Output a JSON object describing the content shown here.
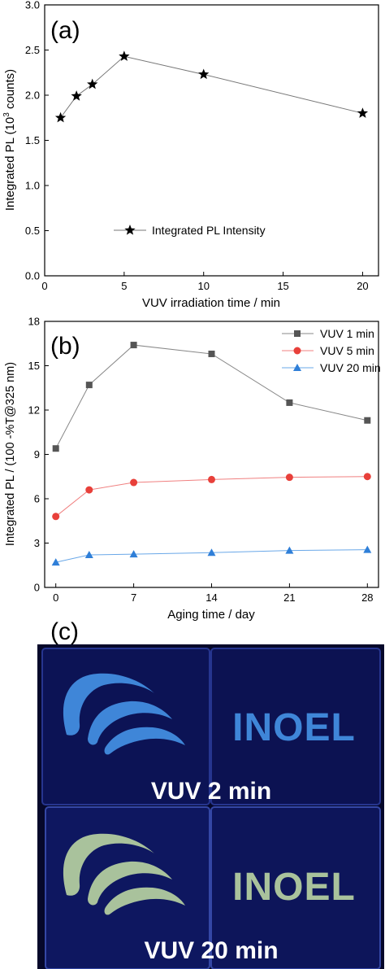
{
  "panel_labels": {
    "a": "(a)",
    "b": "(b)",
    "c": "(c)"
  },
  "chart_data": [
    {
      "id": "a",
      "type": "line",
      "xlabel": "VUV irradiation time / min",
      "ylabel": "Integrated PL (10",
      "ylabel_sup": "3",
      "ylabel_tail": " counts)",
      "xlim": [
        0,
        21
      ],
      "ylim": [
        0,
        3
      ],
      "xticks": [
        0,
        5,
        10,
        15,
        20
      ],
      "yticks": [
        "0.0",
        "0.5",
        "1.0",
        "1.5",
        "2.0",
        "2.5",
        "3.0"
      ],
      "grid": false,
      "legend": "bottom-center",
      "series": [
        {
          "name": "Integrated PL Intensity",
          "marker": "star",
          "color": "#000000",
          "line_color": "#777777",
          "x": [
            1,
            2,
            3,
            5,
            10,
            20
          ],
          "y": [
            1.75,
            1.99,
            2.12,
            2.43,
            2.23,
            1.8
          ]
        }
      ]
    },
    {
      "id": "b",
      "type": "line",
      "xlabel": "Aging time / day",
      "ylabel": "Integrated PL / (100 -%T@325 nm)",
      "xlim": [
        -1,
        29
      ],
      "ylim": [
        0,
        18
      ],
      "xticks": [
        0,
        7,
        14,
        21,
        28
      ],
      "yticks": [
        0,
        3,
        6,
        9,
        12,
        15,
        18
      ],
      "grid": false,
      "legend": "top-right",
      "series": [
        {
          "name": "VUV 1 min",
          "marker": "square",
          "color": "#555555",
          "line_color": "#888888",
          "x": [
            0,
            3,
            7,
            14,
            21,
            28
          ],
          "y": [
            9.4,
            13.7,
            16.4,
            15.8,
            12.5,
            11.3
          ]
        },
        {
          "name": "VUV 5 min",
          "marker": "circle",
          "color": "#e8403a",
          "line_color": "#f08080",
          "x": [
            0,
            3,
            7,
            14,
            21,
            28
          ],
          "y": [
            4.8,
            6.6,
            7.1,
            7.3,
            7.45,
            7.5
          ]
        },
        {
          "name": "VUV 20 min",
          "marker": "triangle",
          "color": "#2f7fd8",
          "line_color": "#6aa8e8",
          "x": [
            0,
            3,
            7,
            14,
            21,
            28
          ],
          "y": [
            1.7,
            2.2,
            2.25,
            2.35,
            2.5,
            2.55
          ]
        }
      ]
    }
  ],
  "photo": {
    "top_text": "INOEL",
    "bottom_text": "INOEL",
    "caption_top": "VUV 2 min",
    "caption_bottom": "VUV 20 min",
    "colors": {
      "background": "#06082a",
      "glass": "#0d1560",
      "glass_edge": "#2a3a9a",
      "logo_top": "#3f86d8",
      "logo_bottom": "#a9c29c"
    }
  }
}
